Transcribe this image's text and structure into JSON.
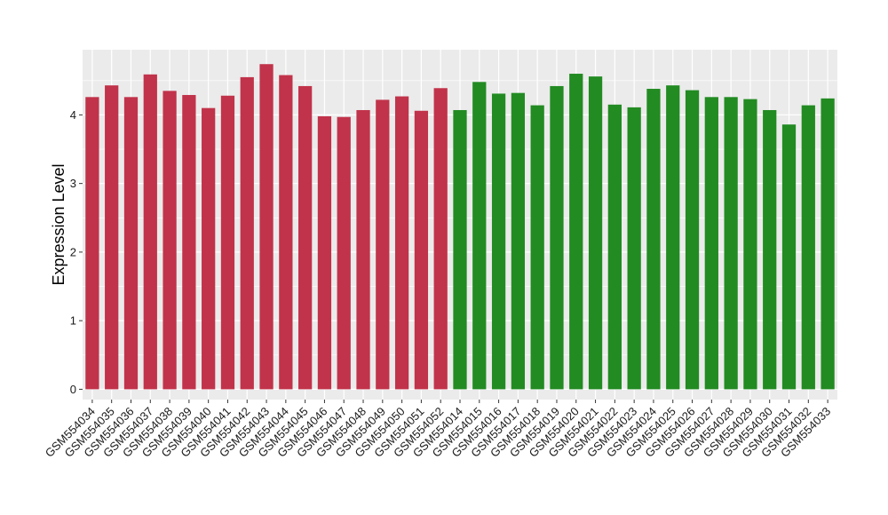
{
  "chart_data": {
    "type": "bar",
    "title": "",
    "xlabel": "",
    "ylabel": "Expression Level",
    "ylim": [
      -0.15,
      4.95
    ],
    "yticks": [
      0,
      1,
      2,
      3,
      4
    ],
    "grid": true,
    "legend": "none",
    "background_color": "#ebebeb",
    "grid_color": "#ffffff",
    "categories": [
      "GSM554034",
      "GSM554035",
      "GSM554036",
      "GSM554037",
      "GSM554038",
      "GSM554039",
      "GSM554040",
      "GSM554041",
      "GSM554042",
      "GSM554043",
      "GSM554044",
      "GSM554045",
      "GSM554046",
      "GSM554047",
      "GSM554048",
      "GSM554049",
      "GSM554050",
      "GSM554051",
      "GSM554052",
      "GSM554014",
      "GSM554015",
      "GSM554016",
      "GSM554017",
      "GSM554018",
      "GSM554019",
      "GSM554020",
      "GSM554021",
      "GSM554022",
      "GSM554023",
      "GSM554024",
      "GSM554025",
      "GSM554026",
      "GSM554027",
      "GSM554028",
      "GSM554029",
      "GSM554030",
      "GSM554031",
      "GSM554032",
      "GSM554033"
    ],
    "values": [
      4.26,
      4.43,
      4.26,
      4.59,
      4.35,
      4.29,
      4.1,
      4.28,
      4.55,
      4.74,
      4.58,
      4.42,
      3.98,
      3.97,
      4.07,
      4.22,
      4.27,
      4.06,
      4.39,
      4.07,
      4.48,
      4.31,
      4.32,
      4.14,
      4.42,
      4.6,
      4.56,
      4.15,
      4.11,
      4.38,
      4.43,
      4.36,
      4.26,
      4.26,
      4.23,
      4.07,
      3.86,
      4.14,
      4.24
    ],
    "groups": [
      {
        "color": "#c1334a",
        "count": 19
      },
      {
        "color": "#228b22",
        "count": 20
      }
    ]
  }
}
